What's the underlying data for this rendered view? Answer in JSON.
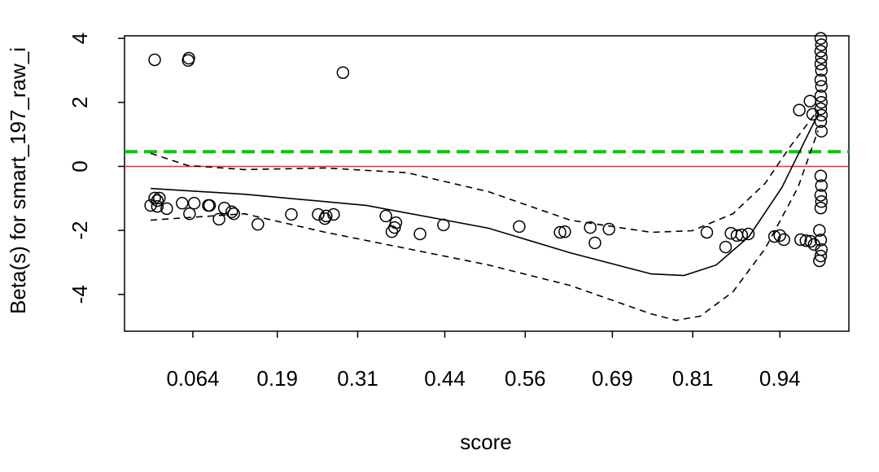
{
  "chart_data": {
    "type": "scatter",
    "xlabel": "score",
    "ylabel": "Beta(s) for smart_197_raw_i",
    "xlim": [
      -0.038,
      1.043
    ],
    "ylim": [
      -5.15,
      4.08
    ],
    "xticks": [
      0.064,
      0.19,
      0.31,
      0.44,
      0.56,
      0.69,
      0.81,
      0.94
    ],
    "yticks": [
      -4,
      -2,
      0,
      2,
      4
    ],
    "points": {
      "color": "#000000",
      "x": [
        0.007,
        0.057,
        0.058,
        0.288,
        0.001,
        0.007,
        0.011,
        0.014,
        0.011,
        0.025,
        0.048,
        0.059,
        0.066,
        0.087,
        0.089,
        0.103,
        0.111,
        0.122,
        0.125,
        0.161,
        0.211,
        0.251,
        0.261,
        0.263,
        0.274,
        0.352,
        0.361,
        0.365,
        0.367,
        0.403,
        0.438,
        0.551,
        0.612,
        0.619,
        0.657,
        0.664,
        0.685,
        0.831,
        0.859,
        0.867,
        0.876,
        0.883,
        0.893,
        0.932,
        0.94,
        0.946,
        0.971,
        0.979,
        0.986,
        0.991,
        0.969,
        0.985,
        0.989,
        1.001,
        1.002,
        1.001,
        1.002,
        1.001,
        1.002,
        1.001,
        1.002,
        1.001,
        1.002,
        1.001,
        1.002,
        1.001,
        1.002,
        1.001,
        1.002,
        1.001,
        1.002,
        1.001,
        0.999,
        1.001,
        1.002,
        1.001,
        0.999
      ],
      "y": [
        3.33,
        3.31,
        3.38,
        2.93,
        -1.22,
        -0.99,
        -1.07,
        -0.99,
        -1.25,
        -1.32,
        -1.15,
        -1.48,
        -1.15,
        -1.22,
        -1.22,
        -1.65,
        -1.3,
        -1.42,
        -1.48,
        -1.81,
        -1.5,
        -1.5,
        -1.63,
        -1.55,
        -1.5,
        -1.55,
        -2.04,
        -1.91,
        -1.76,
        -2.11,
        -1.83,
        -1.88,
        -2.06,
        -2.04,
        -1.91,
        -2.39,
        -1.96,
        -2.06,
        -2.52,
        -2.09,
        -2.16,
        -2.14,
        -2.11,
        -2.19,
        -2.16,
        -2.29,
        -2.29,
        -2.32,
        -2.34,
        -2.44,
        1.76,
        2.04,
        1.63,
        4.0,
        3.8,
        3.6,
        3.4,
        3.2,
        3.0,
        2.7,
        2.5,
        2.2,
        2.0,
        1.8,
        1.6,
        1.4,
        1.1,
        -0.3,
        -0.6,
        -0.9,
        -1.1,
        -1.3,
        -2.0,
        -2.3,
        -2.6,
        -2.8,
        -2.95
      ]
    },
    "lines": [
      {
        "color": "#000000",
        "dashed": false,
        "x": [
          0.001,
          0.141,
          0.323,
          0.505,
          0.627,
          0.748,
          0.797,
          0.845,
          0.894,
          0.943,
          0.979,
          0.997
        ],
        "y": [
          -0.69,
          -0.87,
          -1.22,
          -1.93,
          -2.7,
          -3.36,
          -3.41,
          -3.08,
          -2.19,
          -0.66,
          0.87,
          1.63
        ]
      },
      {
        "color": "#000000",
        "dashed": true,
        "x": [
          0.001,
          0.056,
          0.141,
          0.262,
          0.384,
          0.505,
          0.627,
          0.748,
          0.809,
          0.87,
          0.918,
          0.955,
          0.997
        ],
        "y": [
          0.41,
          0.03,
          -0.1,
          -0.05,
          -0.2,
          -0.79,
          -1.68,
          -2.06,
          -2.01,
          -1.48,
          -0.53,
          0.61,
          1.76
        ]
      },
      {
        "color": "#000000",
        "dashed": true,
        "x": [
          0.001,
          0.141,
          0.262,
          0.384,
          0.505,
          0.627,
          0.748,
          0.785,
          0.821,
          0.87,
          0.918,
          0.967,
          0.997
        ],
        "y": [
          -1.68,
          -1.48,
          -2.06,
          -2.57,
          -3.08,
          -3.72,
          -4.61,
          -4.81,
          -4.68,
          -3.92,
          -2.57,
          -0.66,
          1.12
        ]
      }
    ],
    "hlines": [
      {
        "y": 0,
        "color": "#ff2a1a",
        "dashed": false
      },
      {
        "y": 0.46,
        "color": "#00c800",
        "dashed": true
      }
    ]
  }
}
